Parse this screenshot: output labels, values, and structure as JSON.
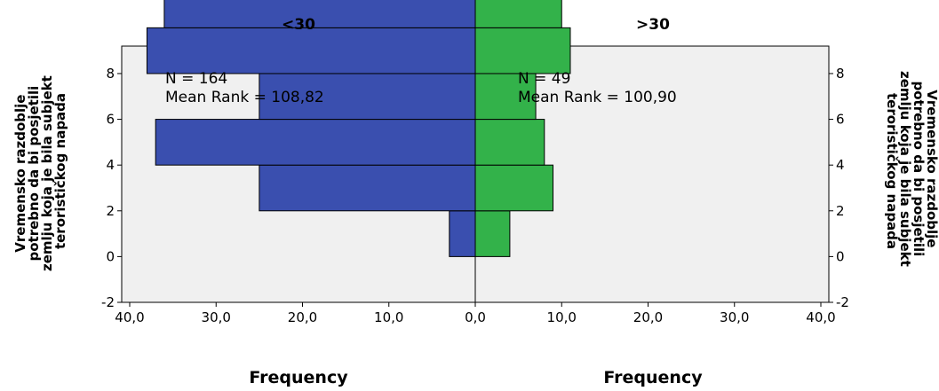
{
  "chart_data": {
    "type": "bar",
    "subtype": "population-pyramid",
    "orientation": "horizontal",
    "groups": [
      {
        "name": "<30",
        "side": "left",
        "color": "#3A4FAF",
        "n_label": "N = 164",
        "mean_rank_label": "Mean Rank = 108,82",
        "bins": [
          1,
          3,
          5,
          7,
          9,
          11
        ],
        "values": [
          3,
          25,
          37,
          25,
          38,
          36
        ]
      },
      {
        "name": ">30",
        "side": "right",
        "color": "#33B24A",
        "n_label": "N = 49",
        "mean_rank_label": "Mean Rank = 100,90",
        "bins": [
          1,
          3,
          5,
          7,
          9,
          11
        ],
        "values": [
          4,
          9,
          8,
          7,
          11,
          10
        ]
      }
    ],
    "bin_width": 2,
    "y_ticks": [
      "-2",
      "0",
      "2",
      "4",
      "6",
      "8"
    ],
    "ylim": [
      -2.0,
      9.2
    ],
    "x_ticks": [
      "40,0",
      "30,0",
      "20,0",
      "10,0",
      "0,0",
      "10,0",
      "20,0",
      "30,0",
      "40,0"
    ],
    "xlim": [
      0,
      40
    ],
    "ylabel_lines": [
      "Vremensko razdoblje",
      "potrebno da bi posjetili",
      "zemlju koja je bila subjekt",
      "terorističkog napada"
    ],
    "xlabel": "Frequency",
    "plot_background": "#F0F0F0"
  }
}
